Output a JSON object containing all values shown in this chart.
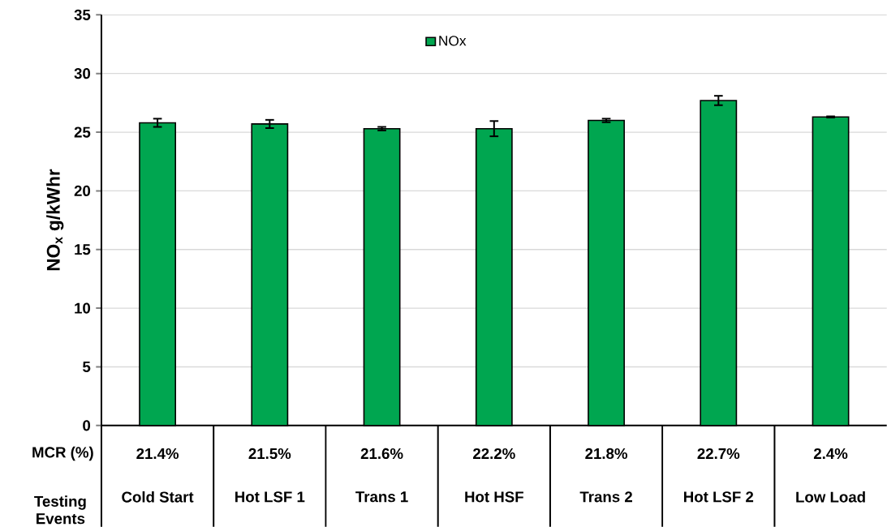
{
  "chart_data": {
    "type": "bar",
    "ylabel": "NO$_{x}$ g/kWhr",
    "xlabel": "Testing Events",
    "categories": [
      "Cold Start",
      "Hot LSF 1",
      "Trans 1",
      "Hot HSF",
      "Trans 2",
      "Hot LSF 2",
      "Low Load"
    ],
    "series": [
      {
        "name": "NOx",
        "color": "#00a650",
        "values": [
          25.8,
          25.7,
          25.3,
          25.3,
          26.0,
          27.7,
          26.3
        ],
        "errors": [
          0.35,
          0.35,
          0.15,
          0.65,
          0.15,
          0.4,
          0.05
        ]
      }
    ],
    "ylim": [
      0,
      35
    ],
    "yticks": [
      0,
      5,
      10,
      15,
      20,
      25,
      30,
      35
    ],
    "grid": "y",
    "legend": "top",
    "annotations": [
      "MCR (%)",
      "21.4%",
      "21.5%",
      "21.6%",
      "22.2%",
      "21.8%",
      "22.7%",
      "2.4%"
    ]
  }
}
